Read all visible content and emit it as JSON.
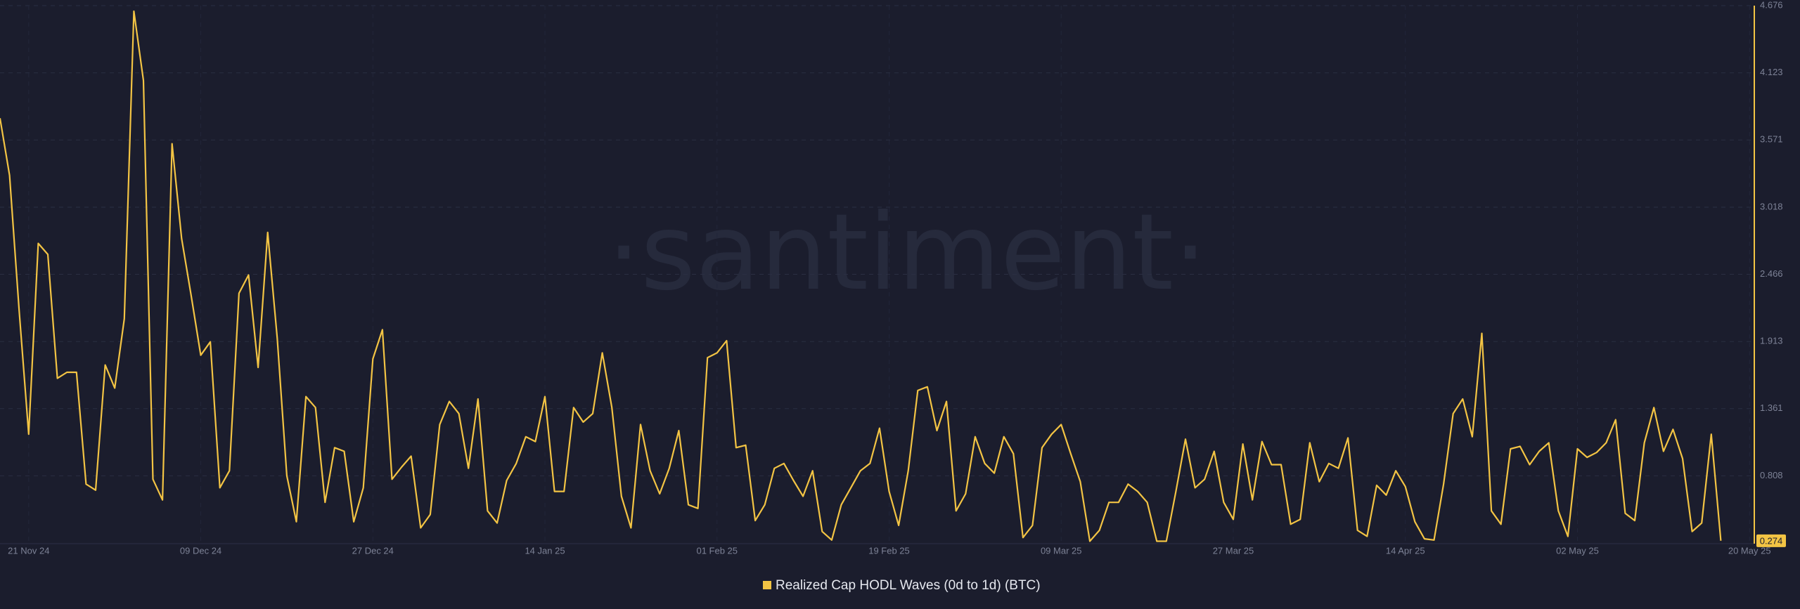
{
  "chart_data": {
    "type": "line",
    "watermark": "·santiment·",
    "name": "Realized Cap HODL Waves (0d to 1d) (BTC)",
    "color": "#f3c444",
    "ylim": [
      0.25,
      4.676
    ],
    "yticks": [
      0.808,
      1.361,
      1.913,
      2.466,
      3.018,
      3.571,
      4.123,
      4.676
    ],
    "xlim": [
      0,
      183.5
    ],
    "xticks": [
      {
        "value": 3,
        "label": "21 Nov 24"
      },
      {
        "value": 21,
        "label": "09 Dec 24"
      },
      {
        "value": 39,
        "label": "27 Dec 24"
      },
      {
        "value": 57,
        "label": "14 Jan 25"
      },
      {
        "value": 75,
        "label": "01 Feb 25"
      },
      {
        "value": 93,
        "label": "19 Feb 25"
      },
      {
        "value": 111,
        "label": "09 Mar 25"
      },
      {
        "value": 129,
        "label": "27 Mar 25"
      },
      {
        "value": 147,
        "label": "14 Apr 25"
      },
      {
        "value": 165,
        "label": "02 May 25"
      },
      {
        "value": 183,
        "label": "20 May 25"
      }
    ],
    "grid": true,
    "values": [
      3.75,
      3.28,
      2.17,
      1.15,
      2.72,
      2.63,
      1.61,
      1.66,
      1.66,
      0.74,
      0.69,
      1.72,
      1.53,
      2.1,
      4.63,
      4.06,
      0.78,
      0.61,
      3.54,
      2.76,
      2.29,
      1.8,
      1.91,
      0.71,
      0.85,
      2.31,
      2.46,
      1.7,
      2.81,
      1.94,
      0.81,
      0.43,
      1.46,
      1.37,
      0.59,
      1.04,
      1.01,
      0.43,
      0.71,
      1.77,
      2.01,
      0.78,
      0.88,
      0.97,
      0.38,
      0.49,
      1.23,
      1.42,
      1.32,
      0.87,
      1.44,
      0.52,
      0.42,
      0.77,
      0.91,
      1.13,
      1.09,
      1.46,
      0.68,
      0.68,
      1.37,
      1.25,
      1.32,
      1.82,
      1.37,
      0.64,
      0.38,
      1.23,
      0.85,
      0.66,
      0.87,
      1.18,
      0.57,
      0.54,
      1.78,
      1.82,
      1.92,
      1.04,
      1.06,
      0.44,
      0.57,
      0.87,
      0.91,
      0.77,
      0.64,
      0.85,
      0.35,
      0.28,
      0.57,
      0.71,
      0.85,
      0.91,
      1.2,
      0.68,
      0.4,
      0.85,
      1.51,
      1.54,
      1.18,
      1.42,
      0.52,
      0.66,
      1.13,
      0.91,
      0.83,
      1.13,
      0.99,
      0.3,
      0.4,
      1.04,
      1.15,
      1.23,
      0.99,
      0.76,
      0.27,
      0.36,
      0.59,
      0.59,
      0.74,
      0.68,
      0.59,
      0.27,
      0.27,
      0.68,
      1.11,
      0.71,
      0.78,
      1.01,
      0.59,
      0.45,
      1.07,
      0.61,
      1.09,
      0.9,
      0.9,
      0.41,
      0.45,
      1.08,
      0.76,
      0.91,
      0.87,
      1.12,
      0.36,
      0.31,
      0.73,
      0.65,
      0.85,
      0.72,
      0.43,
      0.29,
      0.28,
      0.74,
      1.32,
      1.44,
      1.13,
      1.98,
      0.52,
      0.41,
      1.03,
      1.05,
      0.9,
      1.01,
      1.08,
      0.52,
      0.31,
      1.03,
      0.96,
      1.0,
      1.08,
      1.27,
      0.5,
      0.44,
      1.08,
      1.37,
      1.01,
      1.19,
      0.95,
      0.35,
      0.42,
      1.15,
      0.274
    ]
  }
}
